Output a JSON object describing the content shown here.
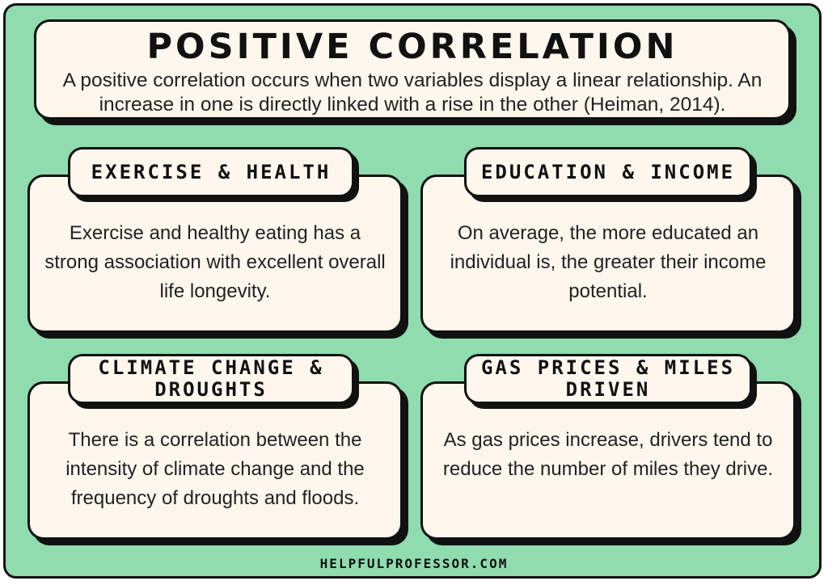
{
  "header": {
    "title": "POSITIVE CORRELATION",
    "description": "A positive correlation occurs when two variables display a linear relationship. An increase in one is directly linked with a rise in the other (Heiman, 2014)."
  },
  "cards": [
    {
      "title": "EXERCISE & HEALTH",
      "text": "Exercise and healthy eating has a strong association with excellent overall life longevity."
    },
    {
      "title": "EDUCATION & INCOME",
      "text": "On average, the more educated an individual is, the greater their income potential."
    },
    {
      "title": "CLIMATE CHANGE & DROUGHTS",
      "text": "There is a correlation between the intensity of climate change and the frequency of droughts and floods."
    },
    {
      "title": "GAS PRICES & MILES DRIVEN",
      "text": "As gas prices increase, drivers tend to reduce the number of miles they drive."
    }
  ],
  "footer": {
    "site": "HELPFULPROFESSOR.COM"
  },
  "colors": {
    "background": "#8fdcae",
    "panel": "#fdf7ee",
    "outline": "#111111"
  }
}
